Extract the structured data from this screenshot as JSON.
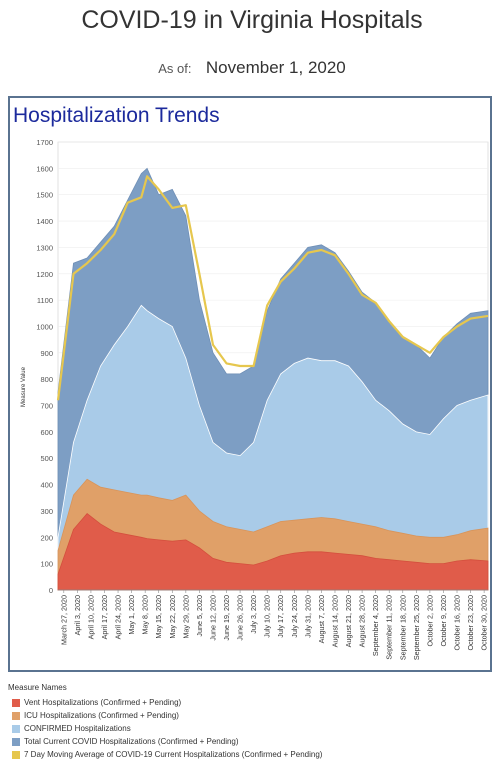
{
  "header": {
    "title": "COVID-19 in Virginia Hospitals",
    "asof_label": "As of:",
    "asof_date": "November 1, 2020"
  },
  "panel": {
    "title": "Hospitalization Trends"
  },
  "legend": {
    "title": "Measure Names",
    "items": [
      {
        "label": "Vent Hospitalizations (Confirmed + Pending)",
        "color": "#e05c4a"
      },
      {
        "label": "ICU Hospitalizations (Confirmed + Pending)",
        "color": "#e0a068"
      },
      {
        "label": "CONFIRMED Hospitalizations",
        "color": "#a9cbe8"
      },
      {
        "label": "Total Current COVID Hospitalizations (Confirmed + Pending)",
        "color": "#7d9ec4"
      },
      {
        "label": "7 Day Moving Average of COVID-19 Current Hospitalizations (Confirmed + Pending)",
        "color": "#e6c74e"
      }
    ]
  },
  "chart_data": {
    "type": "area",
    "ylabel": "Measure Value",
    "ylim": [
      0,
      1700
    ],
    "yticks": [
      0,
      100,
      200,
      300,
      400,
      500,
      600,
      700,
      800,
      900,
      1000,
      1100,
      1200,
      1300,
      1400,
      1500,
      1600,
      1700
    ],
    "xlim": [
      "March 24, 2020",
      "November 1, 2020"
    ],
    "x_tick_labels": [
      "March 27, 2020",
      "April 3, 2020",
      "April 10, 2020",
      "April 17, 2020",
      "April 24, 2020",
      "May 1, 2020",
      "May 8, 2020",
      "May 15, 2020",
      "May 22, 2020",
      "May 29, 2020",
      "June 5, 2020",
      "June 12, 2020",
      "June 19, 2020",
      "June 26, 2020",
      "July 3, 2020",
      "July 10, 2020",
      "July 17, 2020",
      "July 24, 2020",
      "July 31, 2020",
      "August 7, 2020",
      "August 14, 2020",
      "August 21, 2020",
      "August 28, 2020",
      "September 4, 2020",
      "September 11, 2020",
      "September 18, 2020",
      "September 25, 2020",
      "October 2, 2020",
      "October 9, 2020",
      "October 16, 2020",
      "October 23, 2020",
      "October 30, 2020"
    ],
    "series": [
      {
        "name": "Total Current COVID Hospitalizations (Confirmed + Pending)",
        "x": [
          "March 24, 2020",
          "April 1, 2020",
          "April 8, 2020",
          "April 15, 2020",
          "April 22, 2020",
          "April 29, 2020",
          "May 6, 2020",
          "May 9, 2020",
          "May 15, 2020",
          "May 22, 2020",
          "May 29, 2020",
          "June 5, 2020",
          "June 12, 2020",
          "June 19, 2020",
          "June 26, 2020",
          "July 3, 2020",
          "July 10, 2020",
          "July 17, 2020",
          "July 24, 2020",
          "July 31, 2020",
          "August 7, 2020",
          "August 14, 2020",
          "August 21, 2020",
          "August 28, 2020",
          "September 4, 2020",
          "September 11, 2020",
          "September 18, 2020",
          "September 25, 2020",
          "October 2, 2020",
          "October 9, 2020",
          "October 16, 2020",
          "October 23, 2020",
          "November 1, 2020"
        ],
        "values": [
          750,
          1240,
          1260,
          1320,
          1380,
          1480,
          1580,
          1600,
          1500,
          1520,
          1420,
          1100,
          900,
          820,
          820,
          850,
          1060,
          1180,
          1240,
          1300,
          1310,
          1280,
          1210,
          1130,
          1090,
          1020,
          960,
          930,
          880,
          960,
          1010,
          1050,
          1060
        ]
      },
      {
        "name": "7 Day Moving Average of COVID-19 Current Hospitalizations (Confirmed + Pending)",
        "x": [
          "March 24, 2020",
          "April 1, 2020",
          "April 8, 2020",
          "April 15, 2020",
          "April 22, 2020",
          "April 29, 2020",
          "May 6, 2020",
          "May 9, 2020",
          "May 15, 2020",
          "May 22, 2020",
          "May 29, 2020",
          "June 5, 2020",
          "June 12, 2020",
          "June 19, 2020",
          "June 26, 2020",
          "July 3, 2020",
          "July 10, 2020",
          "July 17, 2020",
          "July 24, 2020",
          "July 31, 2020",
          "August 7, 2020",
          "August 14, 2020",
          "August 21, 2020",
          "August 28, 2020",
          "September 4, 2020",
          "September 11, 2020",
          "September 18, 2020",
          "September 25, 2020",
          "October 2, 2020",
          "October 9, 2020",
          "October 16, 2020",
          "October 23, 2020",
          "November 1, 2020"
        ],
        "values": [
          720,
          1200,
          1240,
          1290,
          1350,
          1470,
          1490,
          1570,
          1520,
          1450,
          1460,
          1200,
          930,
          860,
          850,
          850,
          1080,
          1170,
          1220,
          1280,
          1290,
          1270,
          1200,
          1120,
          1090,
          1020,
          960,
          930,
          900,
          960,
          1000,
          1030,
          1040
        ]
      },
      {
        "name": "CONFIRMED Hospitalizations",
        "x": [
          "March 24, 2020",
          "April 1, 2020",
          "April 8, 2020",
          "April 15, 2020",
          "April 22, 2020",
          "April 29, 2020",
          "May 6, 2020",
          "May 9, 2020",
          "May 15, 2020",
          "May 22, 2020",
          "May 29, 2020",
          "June 5, 2020",
          "June 12, 2020",
          "June 19, 2020",
          "June 26, 2020",
          "July 3, 2020",
          "July 10, 2020",
          "July 17, 2020",
          "July 24, 2020",
          "July 31, 2020",
          "August 7, 2020",
          "August 14, 2020",
          "August 21, 2020",
          "August 28, 2020",
          "September 4, 2020",
          "September 11, 2020",
          "September 18, 2020",
          "September 25, 2020",
          "October 2, 2020",
          "October 9, 2020",
          "October 16, 2020",
          "October 23, 2020",
          "November 1, 2020"
        ],
        "values": [
          200,
          560,
          720,
          850,
          930,
          1000,
          1080,
          1060,
          1030,
          1000,
          880,
          700,
          560,
          520,
          510,
          560,
          720,
          820,
          860,
          880,
          870,
          870,
          850,
          790,
          720,
          680,
          630,
          600,
          590,
          650,
          700,
          720,
          740
        ]
      },
      {
        "name": "ICU Hospitalizations (Confirmed + Pending)",
        "x": [
          "March 24, 2020",
          "April 1, 2020",
          "April 8, 2020",
          "April 15, 2020",
          "April 22, 2020",
          "April 29, 2020",
          "May 6, 2020",
          "May 9, 2020",
          "May 15, 2020",
          "May 22, 2020",
          "May 29, 2020",
          "June 5, 2020",
          "June 12, 2020",
          "June 19, 2020",
          "June 26, 2020",
          "July 3, 2020",
          "July 10, 2020",
          "July 17, 2020",
          "July 24, 2020",
          "July 31, 2020",
          "August 7, 2020",
          "August 14, 2020",
          "August 21, 2020",
          "August 28, 2020",
          "September 4, 2020",
          "September 11, 2020",
          "September 18, 2020",
          "September 25, 2020",
          "October 2, 2020",
          "October 9, 2020",
          "October 16, 2020",
          "October 23, 2020",
          "November 1, 2020"
        ],
        "values": [
          150,
          360,
          420,
          390,
          380,
          370,
          360,
          360,
          350,
          340,
          360,
          300,
          260,
          240,
          230,
          220,
          240,
          260,
          265,
          270,
          275,
          270,
          260,
          250,
          240,
          225,
          215,
          205,
          200,
          200,
          210,
          225,
          235
        ]
      },
      {
        "name": "Vent Hospitalizations (Confirmed + Pending)",
        "x": [
          "March 24, 2020",
          "April 1, 2020",
          "April 8, 2020",
          "April 15, 2020",
          "April 22, 2020",
          "April 29, 2020",
          "May 6, 2020",
          "May 9, 2020",
          "May 15, 2020",
          "May 22, 2020",
          "May 29, 2020",
          "June 5, 2020",
          "June 12, 2020",
          "June 19, 2020",
          "June 26, 2020",
          "July 3, 2020",
          "July 10, 2020",
          "July 17, 2020",
          "July 24, 2020",
          "July 31, 2020",
          "August 7, 2020",
          "August 14, 2020",
          "August 21, 2020",
          "August 28, 2020",
          "September 4, 2020",
          "September 11, 2020",
          "September 18, 2020",
          "September 25, 2020",
          "October 2, 2020",
          "October 9, 2020",
          "October 16, 2020",
          "October 23, 2020",
          "November 1, 2020"
        ],
        "values": [
          60,
          230,
          290,
          250,
          220,
          210,
          200,
          195,
          190,
          185,
          190,
          160,
          120,
          105,
          100,
          95,
          110,
          130,
          140,
          145,
          145,
          140,
          135,
          130,
          120,
          115,
          110,
          105,
          100,
          100,
          110,
          115,
          110
        ]
      }
    ]
  }
}
